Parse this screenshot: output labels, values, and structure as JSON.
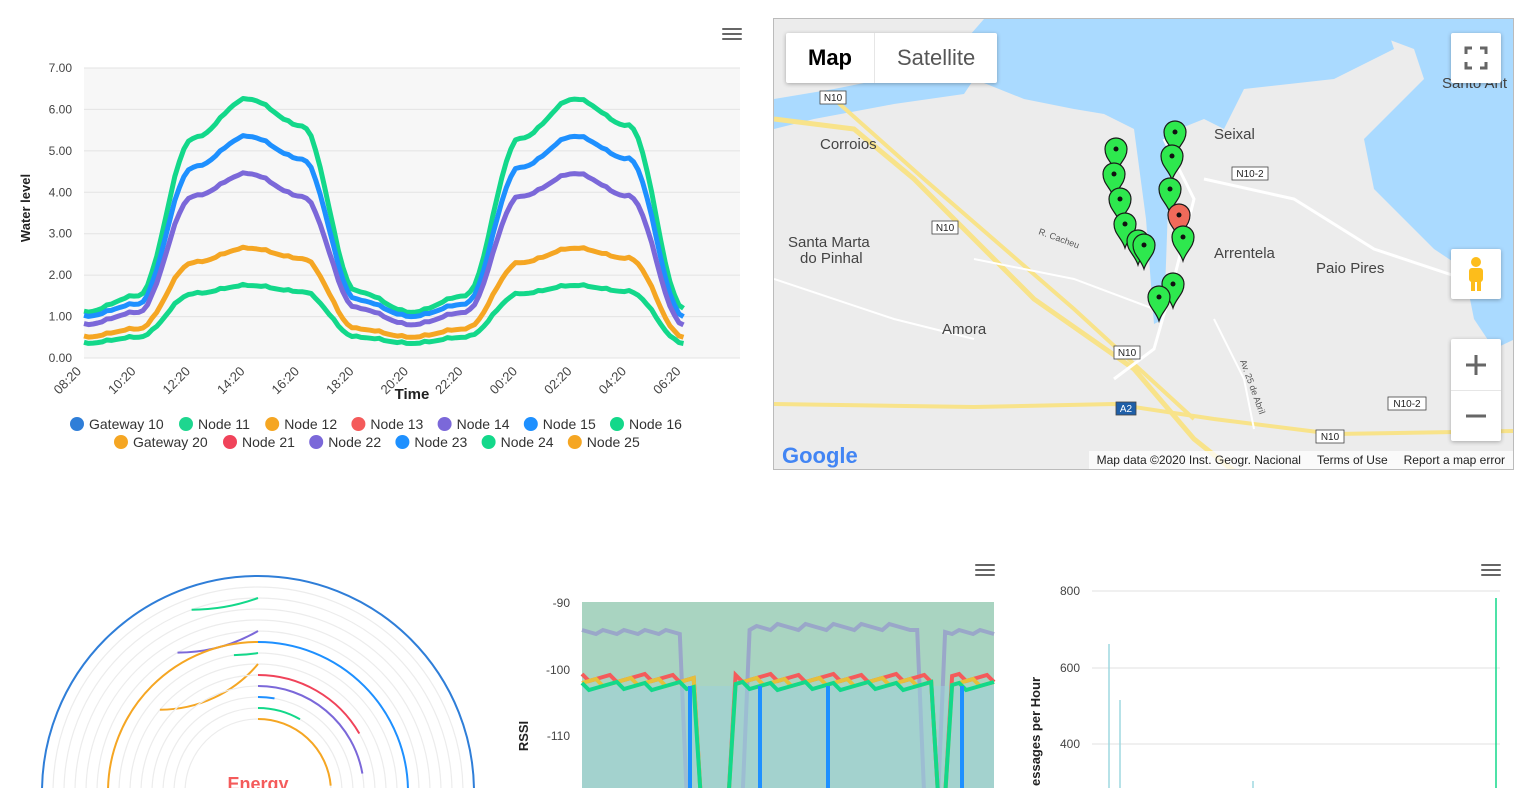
{
  "water_chart": {
    "ylabel": "Water level",
    "xlabel": "Time",
    "y_ticks": [
      "0.00",
      "1.00",
      "2.00",
      "3.00",
      "4.00",
      "5.00",
      "6.00",
      "7.00"
    ],
    "x_ticks": [
      "08:20",
      "10:20",
      "12:20",
      "14:20",
      "16:20",
      "18:20",
      "20:20",
      "22:20",
      "00:20",
      "02:20",
      "04:20",
      "06:20"
    ],
    "legend": [
      {
        "name": "Gateway 10",
        "color": "#2f7ed8"
      },
      {
        "name": "Node 11",
        "color": "#1ed68f"
      },
      {
        "name": "Node 12",
        "color": "#f5a623"
      },
      {
        "name": "Node 13",
        "color": "#f45b5b"
      },
      {
        "name": "Node 14",
        "color": "#7b68d9"
      },
      {
        "name": "Node 15",
        "color": "#1e90ff"
      },
      {
        "name": "Node 16",
        "color": "#13d88a"
      },
      {
        "name": "Gateway 20",
        "color": "#f5a623"
      },
      {
        "name": "Node 21",
        "color": "#f0435a"
      },
      {
        "name": "Node 22",
        "color": "#7b68d9"
      },
      {
        "name": "Node 23",
        "color": "#1e90ff"
      },
      {
        "name": "Node 24",
        "color": "#13d88a"
      },
      {
        "name": "Node 25",
        "color": "#f5a623"
      }
    ]
  },
  "chart_data": [
    {
      "type": "line",
      "title": "",
      "xlabel": "Time",
      "ylabel": "Water level",
      "ylim": [
        0,
        7
      ],
      "x": [
        "08:20",
        "10:20",
        "12:20",
        "14:20",
        "16:20",
        "18:20",
        "20:20",
        "22:20",
        "00:20",
        "02:20",
        "04:20",
        "06:20"
      ],
      "series": [
        {
          "color": "#13d88a",
          "values": [
            1.1,
            1.5,
            5.3,
            6.25,
            5.6,
            1.6,
            1.1,
            1.5,
            5.3,
            6.25,
            5.6,
            1.2
          ]
        },
        {
          "color": "#1e90ff",
          "values": [
            1.0,
            1.3,
            4.6,
            5.35,
            4.8,
            1.4,
            1.0,
            1.3,
            4.6,
            5.35,
            4.8,
            1.0
          ]
        },
        {
          "color": "#7b68d9",
          "values": [
            0.8,
            1.1,
            3.9,
            4.45,
            3.9,
            1.2,
            0.8,
            1.1,
            3.9,
            4.45,
            3.9,
            0.8
          ]
        },
        {
          "color": "#f5a623",
          "values": [
            0.5,
            0.7,
            2.3,
            2.65,
            2.4,
            0.7,
            0.5,
            0.7,
            2.3,
            2.65,
            2.4,
            0.5
          ]
        },
        {
          "color": "#13d88a",
          "values": [
            0.35,
            0.5,
            1.55,
            1.75,
            1.6,
            0.5,
            0.35,
            0.5,
            1.55,
            1.75,
            1.6,
            0.35
          ]
        }
      ]
    },
    {
      "type": "line",
      "title": "",
      "ylabel": "RSSI",
      "y_ticks": [
        -90,
        -100,
        -110
      ]
    },
    {
      "type": "bar",
      "title": "",
      "ylabel": "essages per Hour",
      "y_ticks": [
        800,
        600,
        400
      ]
    }
  ],
  "map": {
    "type_buttons": {
      "map": "Map",
      "satellite": "Satellite"
    },
    "places": [
      {
        "name": "Corroios"
      },
      {
        "name": "Seixal"
      },
      {
        "name": "Santa Marta"
      },
      {
        "name": "do Pinhal"
      },
      {
        "name": "Arrentela"
      },
      {
        "name": "Paio Pires"
      },
      {
        "name": "Amora"
      },
      {
        "name": "Santo Ant"
      }
    ],
    "roads": [
      "N10",
      "N10-2",
      "N10",
      "N10",
      "A2",
      "N10-2",
      "N10"
    ],
    "street_labels": [
      "R. Cacheu",
      "Av. 25 de Abril"
    ],
    "google_logo": "Google",
    "footer": {
      "attribution": "Map data ©2020 Inst. Geogr. Nacional",
      "terms": "Terms of Use",
      "report": "Report a map error"
    },
    "colors": {
      "water": "#aadaff",
      "land": "#ececec",
      "marker_green": "#2ee84e",
      "marker_red": "#f06a5a"
    }
  },
  "energy": {
    "label": "Energy"
  },
  "rssi": {
    "ylabel": "RSSI",
    "y_ticks": [
      "-90",
      "-100",
      "-110"
    ]
  },
  "messages": {
    "ylabel": "essages per Hour",
    "y_ticks": [
      "800",
      "600",
      "400"
    ]
  }
}
